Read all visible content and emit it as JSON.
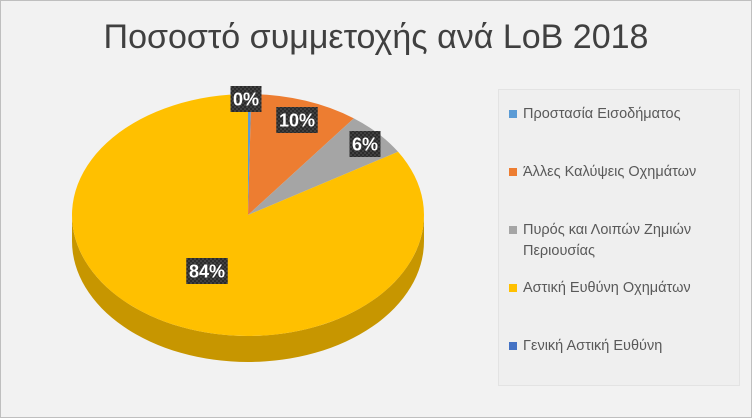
{
  "chart_data": {
    "type": "pie",
    "title": "Ποσοστό συμμετοχής ανά LoB 2018",
    "categories": [
      "Προστασία Εισοδήματος",
      "Άλλες Καλύψεις Οχημάτων",
      "Πυρός και Λοιπών Ζημιών Περιουσίας",
      "Αστική Ευθύνη Οχημάτων",
      "Γενική Αστική Ευθύνη"
    ],
    "values": [
      0.3,
      10,
      6,
      84,
      0
    ],
    "data_labels": [
      "0%",
      "10%",
      "6%",
      "84%",
      ""
    ],
    "colors": [
      "#5b9bd5",
      "#ed7d31",
      "#a5a5a5",
      "#ffc000",
      "#4472c4"
    ],
    "legend_position": "right",
    "style": "3d"
  }
}
